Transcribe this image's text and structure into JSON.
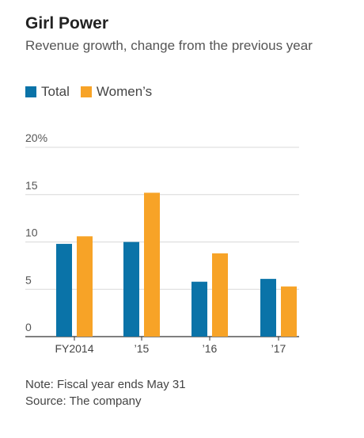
{
  "title": "Girl Power",
  "subtitle": "Revenue growth, change from the previous year",
  "legend": [
    {
      "name": "Total",
      "color": "#0a73a8"
    },
    {
      "name": "Women’s",
      "color": "#f7a327"
    }
  ],
  "notes": {
    "note": "Note: Fiscal year ends May 31",
    "source": "Source: The company"
  },
  "chart_data": {
    "type": "bar",
    "categories": [
      "FY2014",
      "’15",
      "’16",
      "’17"
    ],
    "series": [
      {
        "name": "Total",
        "values": [
          9.8,
          10.0,
          5.8,
          6.1
        ],
        "color": "#0a73a8"
      },
      {
        "name": "Women’s",
        "values": [
          10.6,
          15.2,
          8.8,
          5.3
        ],
        "color": "#f7a327"
      }
    ],
    "y_ticks": [
      0,
      5,
      10,
      15,
      20
    ],
    "y_tick_labels": [
      "0",
      "5",
      "10",
      "15",
      "20%"
    ],
    "ylim": [
      0,
      20
    ],
    "grid": true,
    "legend_position": "top-left"
  }
}
